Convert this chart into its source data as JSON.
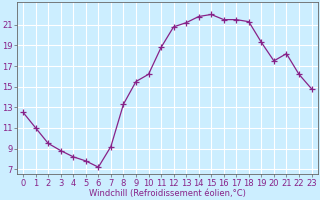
{
  "x": [
    0,
    1,
    2,
    3,
    4,
    5,
    6,
    7,
    8,
    9,
    10,
    11,
    12,
    13,
    14,
    15,
    16,
    17,
    18,
    19,
    20,
    21,
    22,
    23
  ],
  "y": [
    12.5,
    11.0,
    9.5,
    8.8,
    8.2,
    7.8,
    7.2,
    9.2,
    13.3,
    15.5,
    16.2,
    18.8,
    20.8,
    21.2,
    21.8,
    22.0,
    21.5,
    21.5,
    21.3,
    19.3,
    17.5,
    18.2,
    16.2,
    14.8
  ],
  "line_color": "#882288",
  "marker": "+",
  "markersize": 4,
  "linewidth": 0.9,
  "bg_color": "#cceeff",
  "grid_color": "#ffffff",
  "xlabel": "Windchill (Refroidissement éolien,°C)",
  "xlabel_fontsize": 6,
  "tick_fontsize": 6,
  "yticks": [
    7,
    9,
    11,
    13,
    15,
    17,
    19,
    21
  ],
  "ylim": [
    6.5,
    23.2
  ],
  "xlim": [
    -0.5,
    23.5
  ]
}
